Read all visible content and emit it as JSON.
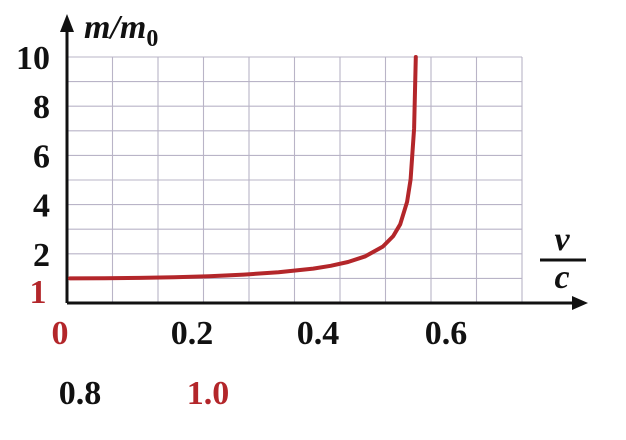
{
  "chart_data": {
    "type": "line",
    "ylabel": {
      "main": "m/m",
      "sub": "0"
    },
    "xlabel": {
      "numerator": "v",
      "denominator": "c"
    },
    "y_ticks": [
      "10",
      "8",
      "6",
      "4",
      "2",
      "1"
    ],
    "x_ticks": [
      "0",
      "0.2",
      "0.4",
      "0.6"
    ],
    "x_ticks_row2": [
      "0.8",
      "1.0"
    ],
    "xlim": [
      0,
      1.0
    ],
    "ylim": [
      0,
      10
    ],
    "grid": true,
    "colors": {
      "curve": "#b3262a",
      "axis": "#111111",
      "grid": "#b9b4c7",
      "highlight": "#b3262a",
      "text": "#111111"
    },
    "series": [
      {
        "x": [
          0,
          0.1,
          0.2,
          0.3,
          0.4,
          0.5,
          0.6,
          0.7,
          0.75,
          0.8,
          0.85,
          0.9,
          0.93,
          0.95,
          0.97,
          0.98,
          0.99,
          0.995
        ],
        "y": [
          1.0,
          1.005,
          1.02,
          1.048,
          1.091,
          1.155,
          1.25,
          1.4,
          1.512,
          1.667,
          1.898,
          2.294,
          2.72,
          3.2,
          4.113,
          5.025,
          7.089,
          10.0
        ]
      }
    ]
  }
}
